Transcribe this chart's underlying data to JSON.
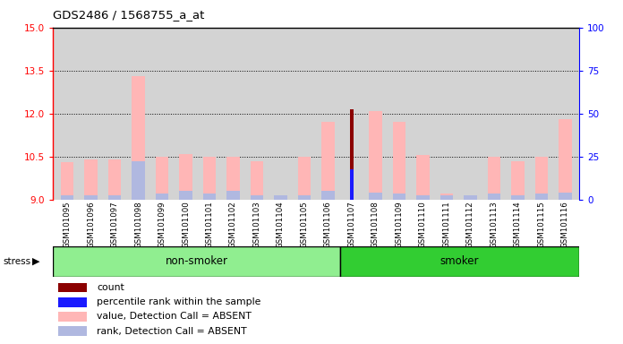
{
  "title": "GDS2486 / 1568755_a_at",
  "samples": [
    "GSM101095",
    "GSM101096",
    "GSM101097",
    "GSM101098",
    "GSM101099",
    "GSM101100",
    "GSM101101",
    "GSM101102",
    "GSM101103",
    "GSM101104",
    "GSM101105",
    "GSM101106",
    "GSM101107",
    "GSM101108",
    "GSM101109",
    "GSM101110",
    "GSM101111",
    "GSM101112",
    "GSM101113",
    "GSM101114",
    "GSM101115",
    "GSM101116"
  ],
  "value_absent": [
    10.3,
    10.4,
    10.4,
    13.3,
    10.5,
    10.6,
    10.5,
    10.5,
    10.35,
    9.15,
    10.5,
    11.7,
    9.0,
    12.1,
    11.7,
    10.55,
    9.2,
    9.15,
    10.5,
    10.35,
    10.5,
    11.8
  ],
  "rank_absent": [
    9.15,
    9.15,
    9.15,
    10.35,
    9.2,
    9.3,
    9.2,
    9.3,
    9.15,
    9.15,
    9.15,
    9.3,
    9.0,
    9.25,
    9.2,
    9.15,
    9.15,
    9.15,
    9.2,
    9.15,
    9.2,
    9.25
  ],
  "count_values": [
    null,
    null,
    null,
    null,
    null,
    null,
    null,
    null,
    null,
    null,
    null,
    null,
    12.15,
    null,
    null,
    null,
    null,
    null,
    null,
    null,
    null,
    null
  ],
  "percentile_values": [
    null,
    null,
    null,
    null,
    null,
    null,
    null,
    null,
    null,
    null,
    null,
    null,
    10.05,
    null,
    null,
    null,
    null,
    null,
    null,
    null,
    null,
    null
  ],
  "group_labels": [
    "non-smoker",
    "smoker"
  ],
  "ns_count": 12,
  "sm_count": 10,
  "group_colors": [
    "#90ee90",
    "#32cd32"
  ],
  "ylim_left": [
    9,
    15
  ],
  "ylim_right": [
    0,
    100
  ],
  "yticks_left": [
    9,
    10.5,
    12,
    13.5,
    15
  ],
  "yticks_right": [
    0,
    25,
    50,
    75,
    100
  ],
  "dotted_lines": [
    10.5,
    12.0,
    13.5
  ],
  "color_count": "#8b0000",
  "color_percentile": "#1a1aff",
  "color_value_absent": "#ffb6b6",
  "color_rank_absent": "#b0b8e0",
  "bg_plot": "#d3d3d3",
  "bg_figure": "#ffffff"
}
